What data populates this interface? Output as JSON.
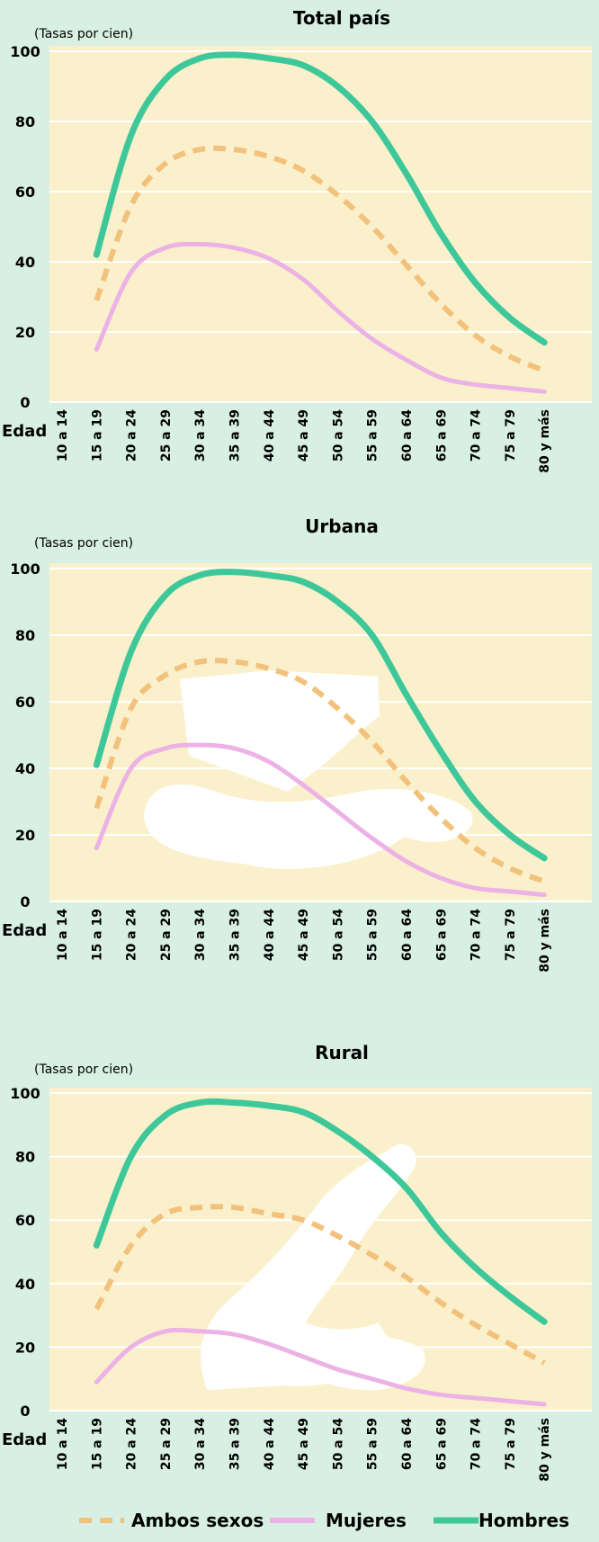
{
  "colors": {
    "background": "#d8efe4",
    "plot_area": "#fbf0cc",
    "gridline": "#ffffff",
    "white_silhouette": "#ffffff",
    "ambos_sexos": "#f2c27d",
    "mujeres": "#ecb2e6",
    "hombres": "#3ec89a"
  },
  "legend": [
    {
      "key": "ambos_sexos",
      "label": "Ambos sexos",
      "style": "dashed"
    },
    {
      "key": "mujeres",
      "label": "Mujeres",
      "style": "solid-light"
    },
    {
      "key": "hombres",
      "label": "Hombres",
      "style": "solid"
    }
  ],
  "chart_data": [
    {
      "type": "line",
      "title": "Total país",
      "ylabel": "(Tasas por cien)",
      "xlabel": "Edad",
      "ylim": [
        0,
        100
      ],
      "yticks": [
        0,
        20,
        40,
        60,
        80,
        100
      ],
      "grid": true,
      "categories": [
        "10 a 14",
        "15 a 19",
        "20 a 24",
        "25 a 29",
        "30 a 34",
        "35 a 39",
        "40 a 44",
        "45 a 49",
        "50 a 54",
        "55 a 59",
        "60 a 64",
        "65 a 69",
        "70 a 74",
        "75 a 79",
        "80 y más"
      ],
      "series": [
        {
          "name": "Ambos sexos",
          "values": [
            null,
            29,
            56,
            68,
            72,
            72,
            70,
            66,
            59,
            50,
            39,
            28,
            19,
            13,
            9
          ]
        },
        {
          "name": "Mujeres",
          "values": [
            null,
            15,
            37,
            44,
            45,
            44,
            41,
            35,
            26,
            18,
            12,
            7,
            5,
            4,
            3
          ]
        },
        {
          "name": "Hombres",
          "values": [
            null,
            42,
            76,
            92,
            98,
            99,
            98,
            96,
            90,
            80,
            65,
            48,
            34,
            24,
            17
          ]
        }
      ]
    },
    {
      "type": "line",
      "title": "Urbana",
      "ylabel": "(Tasas por cien)",
      "xlabel": "Edad",
      "ylim": [
        0,
        100
      ],
      "yticks": [
        0,
        20,
        40,
        60,
        80,
        100
      ],
      "grid": true,
      "categories": [
        "10 a 14",
        "15 a 19",
        "20 a 24",
        "25 a 29",
        "30 a 34",
        "35 a 39",
        "40 a 44",
        "45 a 49",
        "50 a 54",
        "55 a 59",
        "60 a 64",
        "65 a 69",
        "70 a 74",
        "75 a 79",
        "80 y más"
      ],
      "series": [
        {
          "name": "Ambos sexos",
          "values": [
            null,
            28,
            58,
            68,
            72,
            72,
            70,
            66,
            58,
            48,
            36,
            25,
            16,
            10,
            6
          ]
        },
        {
          "name": "Mujeres",
          "values": [
            null,
            16,
            40,
            46,
            47,
            46,
            42,
            35,
            27,
            19,
            12,
            7,
            4,
            3,
            2
          ]
        },
        {
          "name": "Hombres",
          "values": [
            null,
            41,
            75,
            92,
            98,
            99,
            98,
            96,
            90,
            80,
            62,
            45,
            30,
            20,
            13
          ]
        }
      ]
    },
    {
      "type": "line",
      "title": "Rural",
      "ylabel": "(Tasas por cien)",
      "xlabel": "Edad",
      "ylim": [
        0,
        100
      ],
      "yticks": [
        0,
        20,
        40,
        60,
        80,
        100
      ],
      "grid": true,
      "categories": [
        "10 a 14",
        "15 a 19",
        "20 a 24",
        "25 a 29",
        "30 a 34",
        "35 a 39",
        "40 a 44",
        "45 a 49",
        "50 a 54",
        "55 a 59",
        "60 a 64",
        "65 a 69",
        "70 a 74",
        "75 a 79",
        "80 y más"
      ],
      "series": [
        {
          "name": "Ambos sexos",
          "values": [
            null,
            32,
            52,
            62,
            64,
            64,
            62,
            60,
            55,
            49,
            42,
            34,
            27,
            21,
            15
          ]
        },
        {
          "name": "Mujeres",
          "values": [
            null,
            9,
            20,
            25,
            25,
            24,
            21,
            17,
            13,
            10,
            7,
            5,
            4,
            3,
            2
          ]
        },
        {
          "name": "Hombres",
          "values": [
            null,
            52,
            80,
            93,
            97,
            97,
            96,
            94,
            88,
            80,
            70,
            56,
            45,
            36,
            28
          ]
        }
      ]
    }
  ]
}
